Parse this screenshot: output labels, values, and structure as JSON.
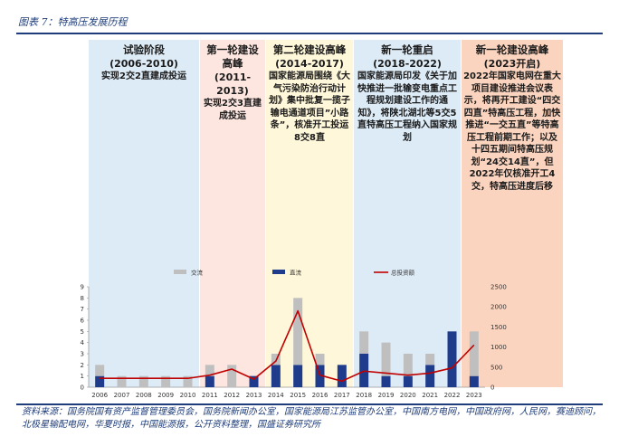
{
  "figure_title": "图表 7：特高压发展历程",
  "source": "资料来源：国务院国有资产监督管理委员会，国务院新闻办公室，国家能源局江苏监管办公室，中国南方电网，中国政府网，人民网，赛迪顾问，北极星输配电网，华夏时报，中国能源报，公开资料整理，国盛证券研究所",
  "colors": {
    "title": "#1f3d7a",
    "ac": "#bfbfbf",
    "dc": "#1f3c8c",
    "investment": "#c00000",
    "phase1": "#ddebf7",
    "phase2": "#fde6e0",
    "phase3": "#fff7d9",
    "phase4": "#ddebf7",
    "phase5": "#fbd4bf"
  },
  "phases": [
    {
      "heading": "试验阶段",
      "range": "(2006-2010)",
      "desc": "实现2交2直建成投运",
      "color_key": "phase1"
    },
    {
      "heading": "第一轮建设高峰",
      "range": "(2011-2013)",
      "desc": "实现2交3直建成投运",
      "color_key": "phase2"
    },
    {
      "heading": "第二轮建设高峰",
      "range": "(2014-2017)",
      "desc": "国家能源局围绕《大气污染防治行动计划》集中批复一揽子输电通道项目”小路条”，核准开工投运8交8直",
      "color_key": "phase3"
    },
    {
      "heading": "新一轮重启",
      "range": "(2018-2022)",
      "desc": "国家能源局印发《关于加快推进一批输变电重点工程规划建设工作的通知》，将陕北湖北等5交5直特高压工程纳入国家规划",
      "color_key": "phase4"
    },
    {
      "heading": "新一轮建设高峰",
      "range": "(2023开启)",
      "desc": "2022年国家电网在重大项目建设推进会议表示，将再开工建设“四交四直”特高压工程，加快推进“一交五直”等特高压工程前期工作；以及十四五期间特高压规划“24交14直”，但2022年仅核准开工4交，特高压进度后移",
      "color_key": "phase5"
    }
  ],
  "chart_data": {
    "type": "bar",
    "stacked": true,
    "categories": [
      "2006",
      "2007",
      "2008",
      "2009",
      "2010",
      "2011",
      "2012",
      "2013",
      "2014",
      "2015",
      "2016",
      "2017",
      "2018",
      "2019",
      "2020",
      "2021",
      "2022",
      "2023"
    ],
    "series": [
      {
        "name": "直流",
        "kind": "bar",
        "axis": "left",
        "color_key": "dc",
        "values": [
          1,
          0,
          0,
          0,
          0,
          1,
          0,
          1,
          2,
          2,
          2,
          2,
          3,
          1,
          1,
          2,
          5,
          1
        ]
      },
      {
        "name": "交流",
        "kind": "bar",
        "axis": "left",
        "color_key": "ac",
        "values": [
          1,
          1,
          1,
          1,
          1,
          1,
          2,
          0,
          1,
          6,
          1,
          0,
          2,
          3,
          2,
          1,
          0,
          4
        ]
      },
      {
        "name": "总投资额",
        "kind": "line",
        "axis": "right",
        "color_key": "investment",
        "values": [
          220,
          220,
          220,
          220,
          220,
          300,
          450,
          200,
          650,
          1900,
          300,
          150,
          400,
          350,
          300,
          350,
          480,
          1050
        ]
      }
    ],
    "left_axis": {
      "min": 0,
      "max": 9,
      "ticks": [
        "0",
        "1",
        "2",
        "3",
        "4",
        "5",
        "6",
        "7",
        "8",
        "9"
      ]
    },
    "right_axis": {
      "min": 0,
      "max": 2500,
      "ticks": [
        "0",
        "500",
        "1000",
        "1500",
        "2000",
        "2500"
      ]
    },
    "legend": [
      "直流",
      "交流",
      "总投资额"
    ],
    "legend_position": "top"
  }
}
